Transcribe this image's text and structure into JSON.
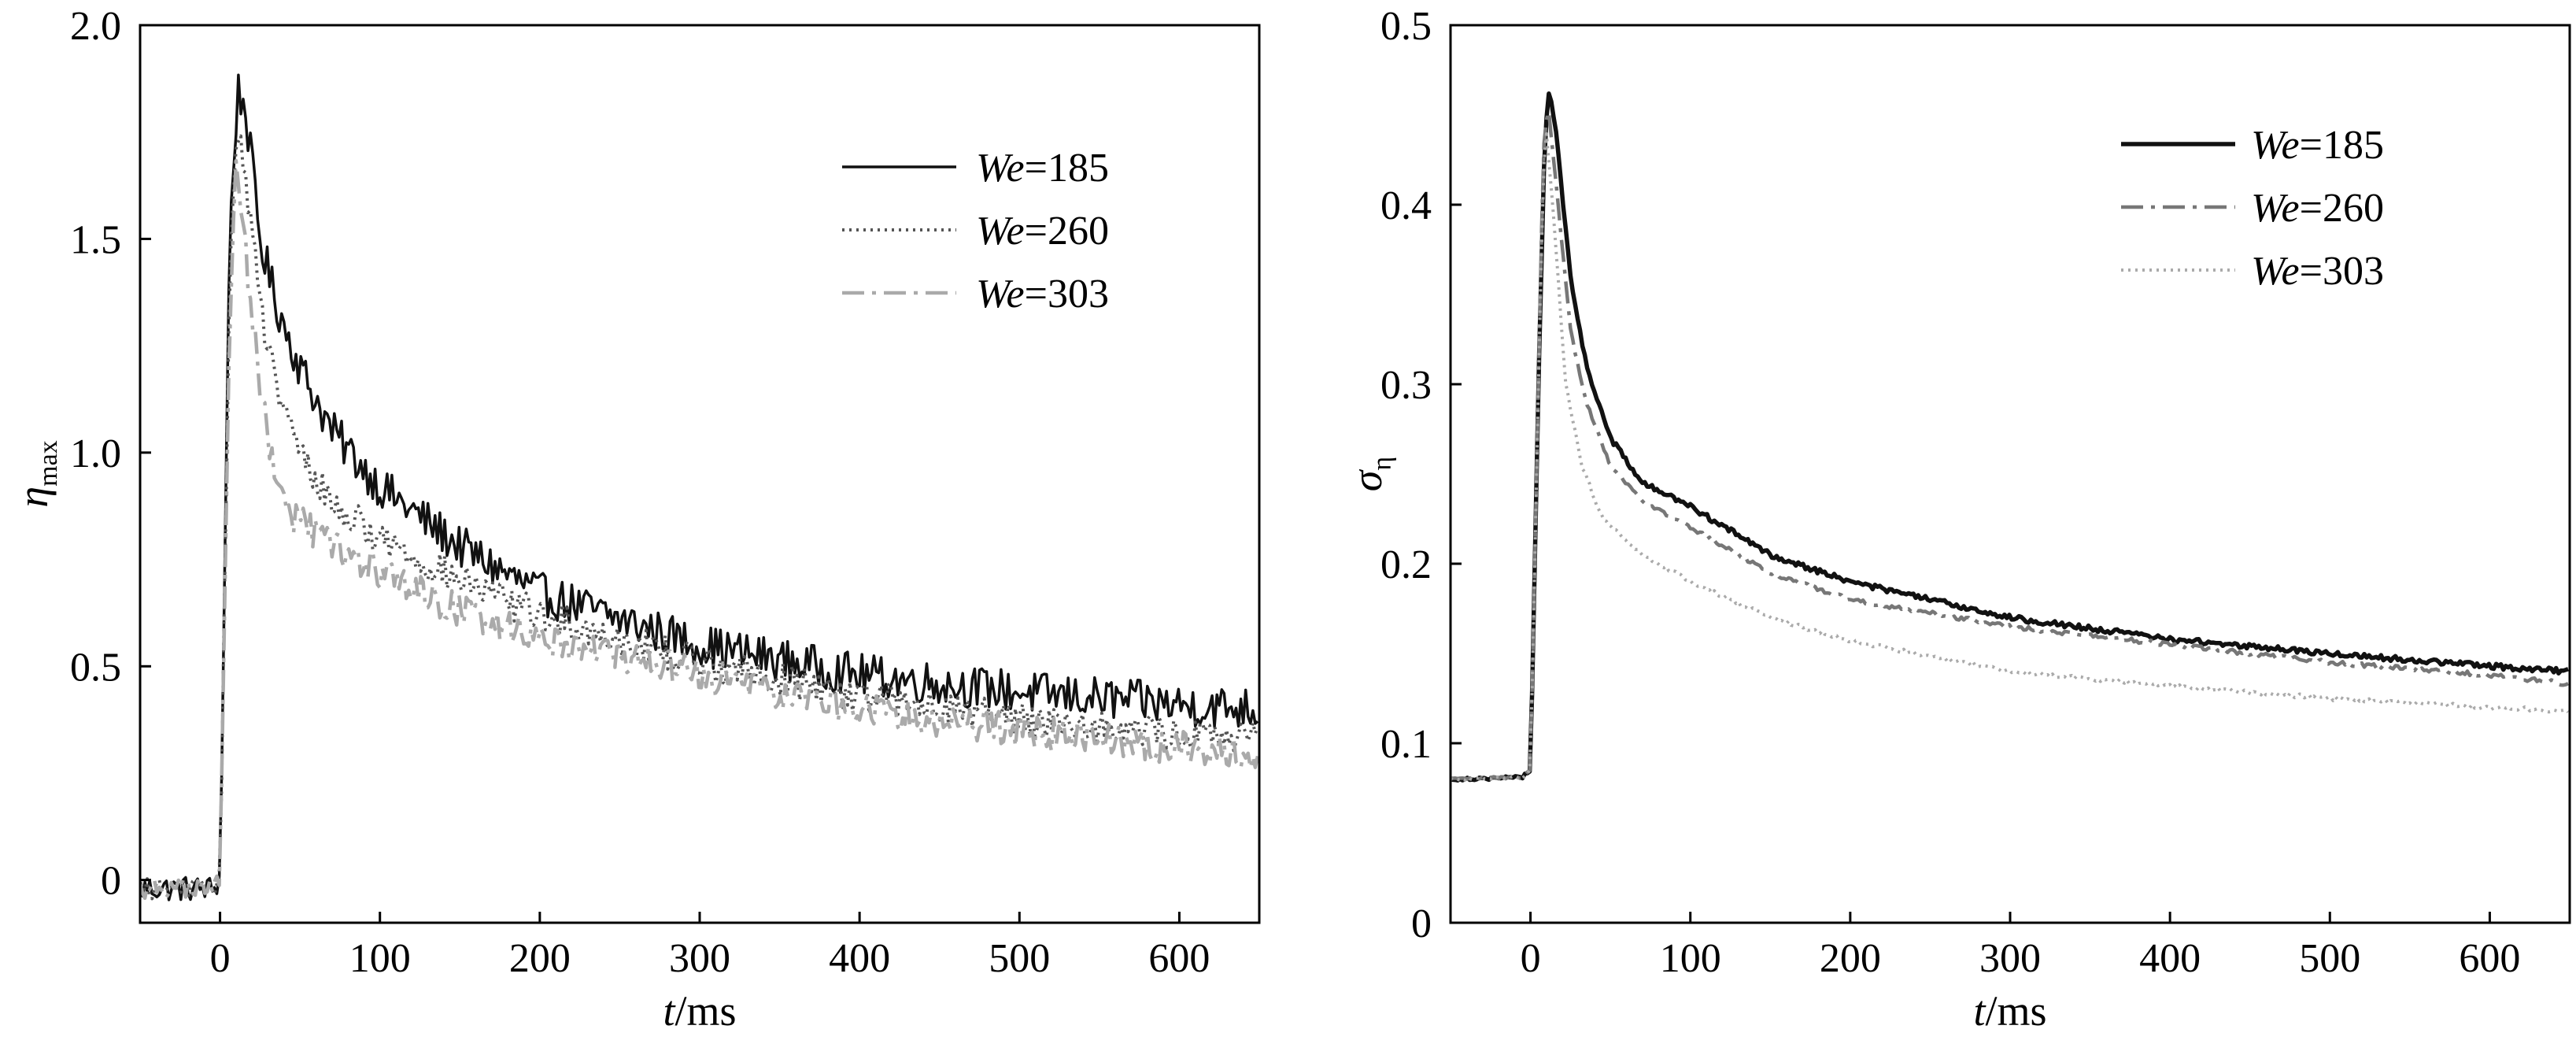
{
  "chart_data": [
    {
      "type": "line",
      "xlabel": {
        "var": "t",
        "unit": "/ms"
      },
      "ylabel": {
        "var": "η",
        "sub": "max"
      },
      "xlim": [
        -50,
        650
      ],
      "ylim": [
        -0.1,
        2.0
      ],
      "xticks": [
        0,
        100,
        200,
        300,
        400,
        500,
        600
      ],
      "yticks": [
        0,
        0.5,
        1.0,
        1.5,
        2.0
      ],
      "ytick_labels": [
        "0",
        "0.5",
        "1.0",
        "1.5",
        "2.0"
      ],
      "legend_position": "top-right",
      "series": [
        {
          "name": "We=185",
          "name_prefix": "We",
          "name_value": "=185",
          "color": "#111111",
          "style": "solid",
          "noise": 0.05,
          "points": [
            [
              -50,
              -0.02
            ],
            [
              -5,
              -0.02
            ],
            [
              0,
              0.0
            ],
            [
              6,
              1.5
            ],
            [
              11,
              1.85
            ],
            [
              16,
              1.8
            ],
            [
              25,
              1.5
            ],
            [
              35,
              1.35
            ],
            [
              50,
              1.2
            ],
            [
              70,
              1.05
            ],
            [
              100,
              0.92
            ],
            [
              150,
              0.78
            ],
            [
              200,
              0.67
            ],
            [
              300,
              0.55
            ],
            [
              400,
              0.48
            ],
            [
              500,
              0.44
            ],
            [
              600,
              0.41
            ],
            [
              650,
              0.4
            ]
          ]
        },
        {
          "name": "We=260",
          "name_prefix": "We",
          "name_value": "=260",
          "color": "#555555",
          "style": "dotted",
          "noise": 0.04,
          "points": [
            [
              -50,
              -0.02
            ],
            [
              -5,
              -0.02
            ],
            [
              0,
              0.0
            ],
            [
              6,
              1.4
            ],
            [
              11,
              1.78
            ],
            [
              15,
              1.68
            ],
            [
              25,
              1.35
            ],
            [
              35,
              1.15
            ],
            [
              50,
              1.0
            ],
            [
              70,
              0.88
            ],
            [
              100,
              0.8
            ],
            [
              150,
              0.7
            ],
            [
              200,
              0.62
            ],
            [
              300,
              0.51
            ],
            [
              400,
              0.43
            ],
            [
              500,
              0.38
            ],
            [
              600,
              0.34
            ],
            [
              650,
              0.33
            ]
          ]
        },
        {
          "name": "We=303",
          "name_prefix": "We",
          "name_value": "=303",
          "color": "#aaaaaa",
          "style": "dashdot",
          "noise": 0.04,
          "points": [
            [
              -50,
              -0.02
            ],
            [
              -5,
              -0.02
            ],
            [
              0,
              0.0
            ],
            [
              6,
              1.3
            ],
            [
              10,
              1.72
            ],
            [
              14,
              1.55
            ],
            [
              22,
              1.25
            ],
            [
              32,
              0.98
            ],
            [
              45,
              0.85
            ],
            [
              70,
              0.78
            ],
            [
              100,
              0.72
            ],
            [
              150,
              0.63
            ],
            [
              200,
              0.57
            ],
            [
              300,
              0.48
            ],
            [
              400,
              0.4
            ],
            [
              500,
              0.35
            ],
            [
              600,
              0.31
            ],
            [
              650,
              0.29
            ]
          ]
        }
      ]
    },
    {
      "type": "line",
      "xlabel": {
        "var": "t",
        "unit": "/ms"
      },
      "ylabel": {
        "var": "σ",
        "sub": "η"
      },
      "xlim": [
        -50,
        650
      ],
      "ylim": [
        0,
        0.5
      ],
      "xticks": [
        0,
        100,
        200,
        300,
        400,
        500,
        600
      ],
      "yticks": [
        0,
        0.1,
        0.2,
        0.3,
        0.4,
        0.5
      ],
      "ytick_labels": [
        "0",
        "0.1",
        "0.2",
        "0.3",
        "0.4",
        "0.5"
      ],
      "legend_position": "top-right",
      "series": [
        {
          "name": "We=185",
          "name_prefix": "We",
          "name_value": "=185",
          "color": "#111111",
          "style": "solid-thick",
          "noise": 0.0015,
          "points": [
            [
              -50,
              0.08
            ],
            [
              -5,
              0.081
            ],
            [
              0,
              0.085
            ],
            [
              5,
              0.3
            ],
            [
              9,
              0.44
            ],
            [
              12,
              0.465
            ],
            [
              16,
              0.44
            ],
            [
              25,
              0.36
            ],
            [
              35,
              0.31
            ],
            [
              50,
              0.27
            ],
            [
              70,
              0.245
            ],
            [
              100,
              0.232
            ],
            [
              150,
              0.205
            ],
            [
              200,
              0.19
            ],
            [
              300,
              0.17
            ],
            [
              400,
              0.158
            ],
            [
              500,
              0.15
            ],
            [
              600,
              0.143
            ],
            [
              650,
              0.14
            ]
          ]
        },
        {
          "name": "We=260",
          "name_prefix": "We",
          "name_value": "=260",
          "color": "#777777",
          "style": "dashdot",
          "noise": 0.0012,
          "points": [
            [
              -50,
              0.08
            ],
            [
              -5,
              0.081
            ],
            [
              0,
              0.085
            ],
            [
              5,
              0.3
            ],
            [
              8,
              0.43
            ],
            [
              11,
              0.455
            ],
            [
              15,
              0.42
            ],
            [
              25,
              0.33
            ],
            [
              35,
              0.29
            ],
            [
              50,
              0.255
            ],
            [
              70,
              0.235
            ],
            [
              100,
              0.22
            ],
            [
              150,
              0.195
            ],
            [
              200,
              0.18
            ],
            [
              300,
              0.165
            ],
            [
              400,
              0.155
            ],
            [
              500,
              0.145
            ],
            [
              600,
              0.138
            ],
            [
              650,
              0.133
            ]
          ]
        },
        {
          "name": "We=303",
          "name_prefix": "We",
          "name_value": "=303",
          "color": "#aaaaaa",
          "style": "dotted",
          "noise": 0.0012,
          "points": [
            [
              -50,
              0.08
            ],
            [
              -5,
              0.081
            ],
            [
              0,
              0.085
            ],
            [
              5,
              0.3
            ],
            [
              8,
              0.42
            ],
            [
              10,
              0.44
            ],
            [
              14,
              0.4
            ],
            [
              22,
              0.3
            ],
            [
              32,
              0.255
            ],
            [
              45,
              0.225
            ],
            [
              70,
              0.205
            ],
            [
              100,
              0.19
            ],
            [
              150,
              0.17
            ],
            [
              200,
              0.157
            ],
            [
              300,
              0.14
            ],
            [
              400,
              0.132
            ],
            [
              500,
              0.125
            ],
            [
              600,
              0.12
            ],
            [
              650,
              0.118
            ]
          ]
        }
      ]
    }
  ]
}
